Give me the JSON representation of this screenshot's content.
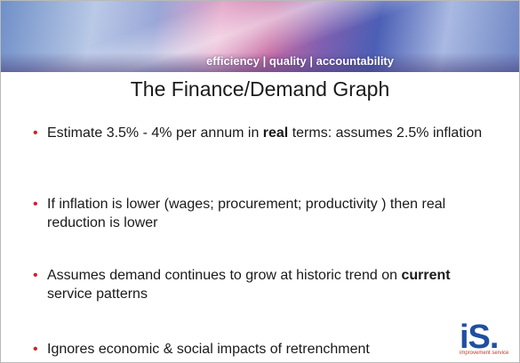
{
  "header": {
    "tagline": "efficiency | quality | accountability"
  },
  "title": "The Finance/Demand Graph",
  "bullets": [
    [
      {
        "text": "Estimate 3.5% - 4% per annum in "
      },
      {
        "text": "real",
        "bold": true
      },
      {
        "text": " terms: assumes 2.5% inflation"
      }
    ],
    [
      {
        "text": "If inflation is lower (wages; procurement; productivity ) then real reduction is lower"
      }
    ],
    [
      {
        "text": "Assumes demand continues to grow at historic trend on "
      },
      {
        "text": "current",
        "bold": true
      },
      {
        "text": " service patterns"
      }
    ],
    [
      {
        "text": "Ignores economic & social impacts of retrenchment"
      }
    ]
  ],
  "logo": {
    "mark": "iS.",
    "subtitle": "improvement service"
  }
}
